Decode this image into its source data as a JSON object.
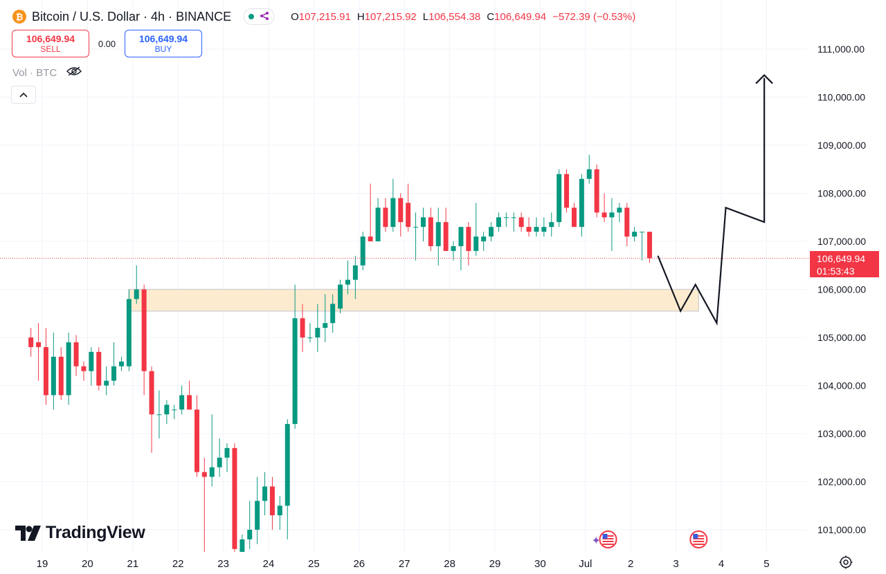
{
  "header": {
    "symbol_icon": "bitcoin-icon",
    "symbol_icon_glyph": "₿",
    "title": "Bitcoin / U.S. Dollar · 4h · BINANCE",
    "status_icons": [
      "market-open-dot-icon",
      "share-icon"
    ],
    "ohlc": [
      {
        "label": "O",
        "value": "107,215.91"
      },
      {
        "label": "H",
        "value": "107,215.92"
      },
      {
        "label": "L",
        "value": "106,554.38"
      },
      {
        "label": "C",
        "value": "106,649.94"
      },
      {
        "label": "",
        "value": "−572.39 (−0.53%)"
      }
    ]
  },
  "trade": {
    "sell_price": "106,649.94",
    "sell_label": "SELL",
    "spread": "0.00",
    "buy_price": "106,649.94",
    "buy_label": "BUY"
  },
  "volume_label": "Vol · BTC",
  "logo_text": "TradingView",
  "current_price": {
    "price": "106,649.94",
    "countdown": "01:53:43",
    "value": 106649.94
  },
  "colors": {
    "up": "#089981",
    "down": "#f23645",
    "zone_fill": "#fdebd0",
    "zone_border": "#d6d3cd",
    "axis_text": "#131722",
    "grid": "#f0f3fa",
    "projection": "#131722",
    "buy": "#2962ff"
  },
  "chart_data": {
    "type": "candlestick",
    "timeframe": "4h",
    "y_axis_labels": [
      {
        "value": 101000,
        "label": "101,000.00"
      },
      {
        "value": 102000,
        "label": "102,000.00"
      },
      {
        "value": 103000,
        "label": "103,000.00"
      },
      {
        "value": 104000,
        "label": "104,000.00"
      },
      {
        "value": 105000,
        "label": "105,000.00"
      },
      {
        "value": 106000,
        "label": "106,000.00"
      },
      {
        "value": 107000,
        "label": "107,000.00"
      },
      {
        "value": 108000,
        "label": "108,000.00"
      },
      {
        "value": 109000,
        "label": "109,000.00"
      },
      {
        "value": 110000,
        "label": "110,000.00"
      },
      {
        "value": 111000,
        "label": "111,000.00"
      }
    ],
    "x_axis_labels": [
      {
        "t": 19,
        "label": "19"
      },
      {
        "t": 20,
        "label": "20"
      },
      {
        "t": 21,
        "label": "21"
      },
      {
        "t": 22,
        "label": "22"
      },
      {
        "t": 23,
        "label": "23"
      },
      {
        "t": 24,
        "label": "24"
      },
      {
        "t": 25,
        "label": "25"
      },
      {
        "t": 26,
        "label": "26"
      },
      {
        "t": 27,
        "label": "27"
      },
      {
        "t": 28,
        "label": "28"
      },
      {
        "t": 29,
        "label": "29"
      },
      {
        "t": 30,
        "label": "30"
      },
      {
        "t": 31,
        "label": "Jul"
      },
      {
        "t": 32,
        "label": "2"
      },
      {
        "t": 33,
        "label": "3"
      },
      {
        "t": 34,
        "label": "4"
      },
      {
        "t": 35,
        "label": "5"
      }
    ],
    "candles": [
      {
        "t": 18.75,
        "o": 105000,
        "h": 105200,
        "l": 104600,
        "c": 104800
      },
      {
        "t": 18.917,
        "o": 104900,
        "h": 105300,
        "l": 104100,
        "c": 104800
      },
      {
        "t": 19.083,
        "o": 104800,
        "h": 105200,
        "l": 103600,
        "c": 103800
      },
      {
        "t": 19.25,
        "o": 103800,
        "h": 105100,
        "l": 103500,
        "c": 104600
      },
      {
        "t": 19.417,
        "o": 104600,
        "h": 104800,
        "l": 103700,
        "c": 103800
      },
      {
        "t": 19.583,
        "o": 103800,
        "h": 105100,
        "l": 103600,
        "c": 104900
      },
      {
        "t": 19.75,
        "o": 104900,
        "h": 105050,
        "l": 104200,
        "c": 104400
      },
      {
        "t": 19.917,
        "o": 104400,
        "h": 104500,
        "l": 104100,
        "c": 104300
      },
      {
        "t": 20.083,
        "o": 104300,
        "h": 104800,
        "l": 104000,
        "c": 104700
      },
      {
        "t": 20.25,
        "o": 104700,
        "h": 104800,
        "l": 103900,
        "c": 104000
      },
      {
        "t": 20.417,
        "o": 104000,
        "h": 104400,
        "l": 103800,
        "c": 104100
      },
      {
        "t": 20.583,
        "o": 104100,
        "h": 104900,
        "l": 104000,
        "c": 104400
      },
      {
        "t": 20.75,
        "o": 104400,
        "h": 104600,
        "l": 104300,
        "c": 104500
      },
      {
        "t": 20.917,
        "o": 104400,
        "h": 106000,
        "l": 104300,
        "c": 105800
      },
      {
        "t": 21.083,
        "o": 105800,
        "h": 106500,
        "l": 105700,
        "c": 106000
      },
      {
        "t": 21.25,
        "o": 106000,
        "h": 106100,
        "l": 103800,
        "c": 104300
      },
      {
        "t": 21.417,
        "o": 104300,
        "h": 104400,
        "l": 102600,
        "c": 103400
      },
      {
        "t": 21.583,
        "o": 103400,
        "h": 103900,
        "l": 102900,
        "c": 103400
      },
      {
        "t": 21.75,
        "o": 103400,
        "h": 103700,
        "l": 103200,
        "c": 103600
      },
      {
        "t": 21.917,
        "o": 103500,
        "h": 103600,
        "l": 103300,
        "c": 103500
      },
      {
        "t": 22.083,
        "o": 103500,
        "h": 104000,
        "l": 103400,
        "c": 103800
      },
      {
        "t": 22.25,
        "o": 103800,
        "h": 104100,
        "l": 103500,
        "c": 103500
      },
      {
        "t": 22.417,
        "o": 103500,
        "h": 103800,
        "l": 102100,
        "c": 102200
      },
      {
        "t": 22.583,
        "o": 102200,
        "h": 102500,
        "l": 100400,
        "c": 102100
      },
      {
        "t": 22.75,
        "o": 102100,
        "h": 103400,
        "l": 101900,
        "c": 102300
      },
      {
        "t": 22.917,
        "o": 102300,
        "h": 102900,
        "l": 102100,
        "c": 102500
      },
      {
        "t": 23.083,
        "o": 102500,
        "h": 102800,
        "l": 102200,
        "c": 102700
      },
      {
        "t": 23.25,
        "o": 102700,
        "h": 102800,
        "l": 100400,
        "c": 100600
      },
      {
        "t": 23.417,
        "o": 100500,
        "h": 100900,
        "l": 100400,
        "c": 100800
      },
      {
        "t": 23.583,
        "o": 100800,
        "h": 101600,
        "l": 100600,
        "c": 101000
      },
      {
        "t": 23.75,
        "o": 101000,
        "h": 102100,
        "l": 100700,
        "c": 101600
      },
      {
        "t": 23.917,
        "o": 101600,
        "h": 102200,
        "l": 101300,
        "c": 101900
      },
      {
        "t": 24.083,
        "o": 101900,
        "h": 102100,
        "l": 101000,
        "c": 101300
      },
      {
        "t": 24.25,
        "o": 101300,
        "h": 101700,
        "l": 101000,
        "c": 101500
      },
      {
        "t": 24.417,
        "o": 101500,
        "h": 103300,
        "l": 100800,
        "c": 103200
      },
      {
        "t": 24.583,
        "o": 103200,
        "h": 106100,
        "l": 103100,
        "c": 105400
      },
      {
        "t": 24.75,
        "o": 105400,
        "h": 105700,
        "l": 104700,
        "c": 105000
      },
      {
        "t": 24.917,
        "o": 105000,
        "h": 105300,
        "l": 104900,
        "c": 105000
      },
      {
        "t": 25.083,
        "o": 105000,
        "h": 105700,
        "l": 104700,
        "c": 105200
      },
      {
        "t": 25.25,
        "o": 105200,
        "h": 105900,
        "l": 104900,
        "c": 105300
      },
      {
        "t": 25.417,
        "o": 105300,
        "h": 105900,
        "l": 105100,
        "c": 105700
      },
      {
        "t": 25.583,
        "o": 105600,
        "h": 106200,
        "l": 105500,
        "c": 106100
      },
      {
        "t": 25.75,
        "o": 106100,
        "h": 106600,
        "l": 105900,
        "c": 106200
      },
      {
        "t": 25.917,
        "o": 106200,
        "h": 106700,
        "l": 105800,
        "c": 106500
      },
      {
        "t": 26.083,
        "o": 106500,
        "h": 107200,
        "l": 106400,
        "c": 107100
      },
      {
        "t": 26.25,
        "o": 107100,
        "h": 108200,
        "l": 107000,
        "c": 107000
      },
      {
        "t": 26.417,
        "o": 107000,
        "h": 107900,
        "l": 107000,
        "c": 107700
      },
      {
        "t": 26.583,
        "o": 107700,
        "h": 107900,
        "l": 107200,
        "c": 107300
      },
      {
        "t": 26.75,
        "o": 107300,
        "h": 108300,
        "l": 107200,
        "c": 107900
      },
      {
        "t": 26.917,
        "o": 107900,
        "h": 108000,
        "l": 107100,
        "c": 107400
      },
      {
        "t": 27.083,
        "o": 107800,
        "h": 108200,
        "l": 107200,
        "c": 107300
      },
      {
        "t": 27.25,
        "o": 107300,
        "h": 107600,
        "l": 106600,
        "c": 107300
      },
      {
        "t": 27.417,
        "o": 107300,
        "h": 107700,
        "l": 107000,
        "c": 107500
      },
      {
        "t": 27.583,
        "o": 107500,
        "h": 107700,
        "l": 106800,
        "c": 106900
      },
      {
        "t": 27.75,
        "o": 106900,
        "h": 107700,
        "l": 106500,
        "c": 107400
      },
      {
        "t": 27.917,
        "o": 107400,
        "h": 107700,
        "l": 106800,
        "c": 106800
      },
      {
        "t": 28.083,
        "o": 106800,
        "h": 107000,
        "l": 106600,
        "c": 106900
      },
      {
        "t": 28.25,
        "o": 106900,
        "h": 107300,
        "l": 106400,
        "c": 107300
      },
      {
        "t": 28.417,
        "o": 107300,
        "h": 107400,
        "l": 106500,
        "c": 106800
      },
      {
        "t": 28.583,
        "o": 106800,
        "h": 107800,
        "l": 106700,
        "c": 107100
      },
      {
        "t": 28.75,
        "o": 107000,
        "h": 107200,
        "l": 106800,
        "c": 107100
      },
      {
        "t": 28.917,
        "o": 107100,
        "h": 107400,
        "l": 107000,
        "c": 107300
      },
      {
        "t": 29.083,
        "o": 107300,
        "h": 107600,
        "l": 107200,
        "c": 107500
      },
      {
        "t": 29.25,
        "o": 107500,
        "h": 107600,
        "l": 107300,
        "c": 107500
      },
      {
        "t": 29.417,
        "o": 107500,
        "h": 107600,
        "l": 107200,
        "c": 107500
      },
      {
        "t": 29.583,
        "o": 107500,
        "h": 107600,
        "l": 107200,
        "c": 107300
      },
      {
        "t": 29.75,
        "o": 107300,
        "h": 107500,
        "l": 107100,
        "c": 107200
      },
      {
        "t": 29.917,
        "o": 107200,
        "h": 107500,
        "l": 107100,
        "c": 107300
      },
      {
        "t": 30.083,
        "o": 107200,
        "h": 107500,
        "l": 107100,
        "c": 107300
      },
      {
        "t": 30.25,
        "o": 107300,
        "h": 107600,
        "l": 107100,
        "c": 107400
      },
      {
        "t": 30.417,
        "o": 107400,
        "h": 108500,
        "l": 107300,
        "c": 108400
      },
      {
        "t": 30.583,
        "o": 108400,
        "h": 108500,
        "l": 107600,
        "c": 107700
      },
      {
        "t": 30.75,
        "o": 107700,
        "h": 107800,
        "l": 107300,
        "c": 107300
      },
      {
        "t": 30.917,
        "o": 107300,
        "h": 108400,
        "l": 107100,
        "c": 108300
      },
      {
        "t": 31.083,
        "o": 108300,
        "h": 108800,
        "l": 108200,
        "c": 108500
      },
      {
        "t": 31.25,
        "o": 108500,
        "h": 108600,
        "l": 107500,
        "c": 107600
      },
      {
        "t": 31.417,
        "o": 107600,
        "h": 108000,
        "l": 107400,
        "c": 107500
      },
      {
        "t": 31.583,
        "o": 107500,
        "h": 107900,
        "l": 106800,
        "c": 107600
      },
      {
        "t": 31.75,
        "o": 107600,
        "h": 107800,
        "l": 107400,
        "c": 107700
      },
      {
        "t": 31.917,
        "o": 107700,
        "h": 107800,
        "l": 106900,
        "c": 107100
      },
      {
        "t": 32.083,
        "o": 107100,
        "h": 107300,
        "l": 107000,
        "c": 107200
      },
      {
        "t": 32.25,
        "o": 107200,
        "h": 107200,
        "l": 106600,
        "c": 107200
      },
      {
        "t": 32.417,
        "o": 107200,
        "h": 107200,
        "l": 106554,
        "c": 106650
      }
    ],
    "zone": {
      "t_start": 20.917,
      "t_end": 33.5,
      "y_low": 105550,
      "y_high": 106000
    },
    "projection": [
      {
        "t": 32.6,
        "y": 106700
      },
      {
        "t": 33.1,
        "y": 105550
      },
      {
        "t": 33.43,
        "y": 106100
      },
      {
        "t": 33.9,
        "y": 105300
      },
      {
        "t": 34.1,
        "y": 107700
      },
      {
        "t": 34.95,
        "y": 107400
      },
      {
        "t": 34.95,
        "y": 110400
      }
    ],
    "events": [
      {
        "t": 31.5,
        "type": "us-economic-event-icon",
        "with_ai_sparkle": true
      },
      {
        "t": 33.5,
        "type": "us-economic-event-icon",
        "with_ai_sparkle": false
      }
    ],
    "grid": true
  }
}
